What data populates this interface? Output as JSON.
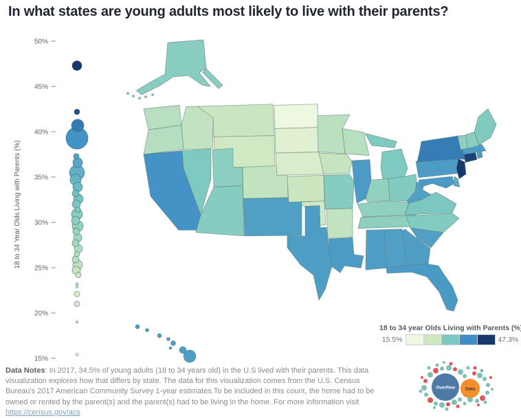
{
  "title": "In what states are young adults most likely to live with their parents?",
  "chart_data": [
    {
      "type": "scatter",
      "name": "beeswarm-strip",
      "ylabel": "18 to 34 Year Olds Living with Parents (%)",
      "y_ticks": [
        "50%",
        "45%",
        "40%",
        "35%",
        "30%",
        "25%",
        "20%",
        "15%"
      ],
      "ylim": [
        13.5,
        51
      ],
      "points": [
        {
          "v": 47.3,
          "r": 7,
          "dx": 0
        },
        {
          "v": 42.2,
          "r": 4,
          "dx": 0
        },
        {
          "v": 40.7,
          "r": 9,
          "dx": 1
        },
        {
          "v": 39.3,
          "r": 16,
          "dx": 0
        },
        {
          "v": 37.3,
          "r": 4,
          "dx": -1
        },
        {
          "v": 36.6,
          "r": 7,
          "dx": 1
        },
        {
          "v": 35.5,
          "r": 11,
          "dx": 0
        },
        {
          "v": 34.7,
          "r": 8,
          "dx": -2
        },
        {
          "v": 33.9,
          "r": 7,
          "dx": 1
        },
        {
          "v": 33.2,
          "r": 5,
          "dx": -2
        },
        {
          "v": 32.6,
          "r": 7,
          "dx": 2
        },
        {
          "v": 32.0,
          "r": 6,
          "dx": -1
        },
        {
          "v": 31.4,
          "r": 4,
          "dx": 1
        },
        {
          "v": 30.9,
          "r": 8,
          "dx": 0
        },
        {
          "v": 30.2,
          "r": 6,
          "dx": -2
        },
        {
          "v": 29.6,
          "r": 8,
          "dx": 1
        },
        {
          "v": 29.0,
          "r": 5,
          "dx": -1
        },
        {
          "v": 28.3,
          "r": 6,
          "dx": 1
        },
        {
          "v": 27.7,
          "r": 5,
          "dx": -2
        },
        {
          "v": 27.1,
          "r": 6,
          "dx": 2
        },
        {
          "v": 26.5,
          "r": 4,
          "dx": 0
        },
        {
          "v": 25.9,
          "r": 5,
          "dx": -2
        },
        {
          "v": 25.3,
          "r": 7,
          "dx": 1
        },
        {
          "v": 24.7,
          "r": 6,
          "dx": -1
        },
        {
          "v": 24.2,
          "r": 4,
          "dx": 2
        },
        {
          "v": 23.2,
          "r": 1.5,
          "dx": 0
        },
        {
          "v": 22.9,
          "r": 2,
          "dx": 0
        },
        {
          "v": 22.1,
          "r": 4,
          "dx": 0
        },
        {
          "v": 21.0,
          "r": 4,
          "dx": 0
        },
        {
          "v": 19.0,
          "r": 1.5,
          "dx": 0
        },
        {
          "v": 15.4,
          "r": 2,
          "dx": 0
        }
      ]
    },
    {
      "type": "heatmap",
      "name": "us-choropleth",
      "legend": {
        "title": "18 to 34 year Olds Living with Parents (%)",
        "min_label": "15.5%",
        "max_label": "47.3%",
        "colors": [
          "#eef7e0",
          "#cfe8c0",
          "#7bc8c0",
          "#3f8ec7",
          "#16386e"
        ]
      },
      "states": [
        {
          "abbr": "WA",
          "value": 26.2
        },
        {
          "abbr": "OR",
          "value": 26.5
        },
        {
          "abbr": "CA",
          "value": 39.4
        },
        {
          "abbr": "NV",
          "value": 31.6
        },
        {
          "abbr": "ID",
          "value": 25.3
        },
        {
          "abbr": "MT",
          "value": 24.6
        },
        {
          "abbr": "WY",
          "value": 23.4
        },
        {
          "abbr": "UT",
          "value": 30.3
        },
        {
          "abbr": "CO",
          "value": 25.2
        },
        {
          "abbr": "AZ",
          "value": 30.9
        },
        {
          "abbr": "NM",
          "value": 37.7
        },
        {
          "abbr": "ND",
          "value": 15.5
        },
        {
          "abbr": "SD",
          "value": 19.4
        },
        {
          "abbr": "NE",
          "value": 21.2
        },
        {
          "abbr": "KS",
          "value": 24.3
        },
        {
          "abbr": "OK",
          "value": 23.6
        },
        {
          "abbr": "TX",
          "value": 38.0
        },
        {
          "abbr": "MN",
          "value": 25.9
        },
        {
          "abbr": "IA",
          "value": 24.9
        },
        {
          "abbr": "MO",
          "value": 31.0
        },
        {
          "abbr": "AR",
          "value": 25.1
        },
        {
          "abbr": "LA",
          "value": 38.2
        },
        {
          "abbr": "WI",
          "value": 26.3
        },
        {
          "abbr": "IL",
          "value": 38.3
        },
        {
          "abbr": "MI",
          "value": 31.7
        },
        {
          "abbr": "IN",
          "value": 29.8
        },
        {
          "abbr": "OH",
          "value": 31.2
        },
        {
          "abbr": "KY",
          "value": 30.0
        },
        {
          "abbr": "TN",
          "value": 30.2
        },
        {
          "abbr": "MS",
          "value": 37.8
        },
        {
          "abbr": "AL",
          "value": 37.6
        },
        {
          "abbr": "GA",
          "value": 37.9
        },
        {
          "abbr": "FL",
          "value": 38.4
        },
        {
          "abbr": "SC",
          "value": 37.6
        },
        {
          "abbr": "NC",
          "value": 31.3
        },
        {
          "abbr": "VA",
          "value": 31.9
        },
        {
          "abbr": "WV",
          "value": 37.5
        },
        {
          "abbr": "PA",
          "value": 38.1
        },
        {
          "abbr": "NY",
          "value": 40.6
        },
        {
          "abbr": "NJ",
          "value": 47.3
        },
        {
          "abbr": "CT",
          "value": 42.6
        },
        {
          "abbr": "RI",
          "value": 38.2
        },
        {
          "abbr": "MA",
          "value": 38.0
        },
        {
          "abbr": "VT",
          "value": 30.2
        },
        {
          "abbr": "NH",
          "value": 30.6
        },
        {
          "abbr": "ME",
          "value": 31.5
        },
        {
          "abbr": "MD",
          "value": 38.5
        },
        {
          "abbr": "DE",
          "value": 36.0
        },
        {
          "abbr": "AK",
          "value": 30.8
        },
        {
          "abbr": "HI",
          "value": 38.0
        }
      ]
    }
  ],
  "footer": {
    "label": "Data Notes",
    "text": ": In 2017, 34.5% of young adults (18 to 34 years old) in the U.S lived with their parents. This data visualization explores how that differs by state. The data for this visualization comes from the U.S. Census Bureau's 2017 American Community Survey 1-year estimates.To be included in this count, the home had to be owned or rented by the parent(s) and the parent(s) had to be living in the home. For more information visit ",
    "link": "https://census.gov/acs"
  },
  "logo": {
    "primary": "Overflow",
    "secondary": "Data",
    "colors": {
      "primary": "#4e79a7",
      "secondary": "#f28e2b",
      "accent_teal": "#7fbfb5",
      "accent_red": "#e05759"
    }
  }
}
